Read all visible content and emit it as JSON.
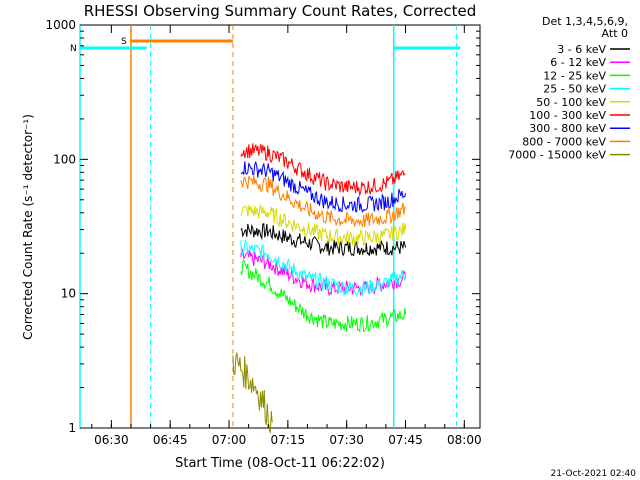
{
  "chart_data": {
    "type": "line",
    "title": "RHESSI Observing Summary Count Rates, Corrected",
    "xlabel": "Start Time (08-Oct-11 06:22:02)",
    "ylabel": "Corrected Count Rate (s⁻¹ detector⁻¹)",
    "yscale": "log",
    "ylim": [
      1,
      1000
    ],
    "xlim": [
      "06:22",
      "08:04"
    ],
    "x_ticks": [
      "06:30",
      "06:45",
      "07:00",
      "07:15",
      "07:30",
      "07:45",
      "08:00"
    ],
    "y_ticks": [
      "1",
      "10",
      "100",
      "1000"
    ],
    "legend_header": [
      "Det 1,3,4,5,6,9,",
      "Att 0"
    ],
    "legend_position": "right",
    "timestamp": "21-Oct-2021 02:40",
    "flags": [
      {
        "label": "S",
        "color": "#ff7f00",
        "start": "06:35",
        "end": "07:01"
      },
      {
        "label": "N",
        "color": "#00ffff",
        "start": "06:22",
        "end": "06:39"
      },
      {
        "label": "",
        "color": "#00ffff",
        "start": "07:42",
        "end": "07:59"
      }
    ],
    "vertical_markers": [
      {
        "time": "06:22",
        "color": "#00ffff",
        "style": "solid"
      },
      {
        "time": "06:35",
        "color": "#ff7f00",
        "style": "solid"
      },
      {
        "time": "06:40",
        "color": "#00ffff",
        "style": "dashed"
      },
      {
        "time": "07:01",
        "color": "#ff7f00",
        "style": "dashed"
      },
      {
        "time": "07:42",
        "color": "#00ffff",
        "style": "solid"
      },
      {
        "time": "07:58",
        "color": "#00ffff",
        "style": "dashed"
      }
    ],
    "series": [
      {
        "name": "3 - 6 keV",
        "color": "#000000",
        "x": [
          "07:03",
          "07:10",
          "07:15",
          "07:20",
          "07:25",
          "07:30",
          "07:35",
          "07:40",
          "07:45"
        ],
        "y": [
          30,
          29,
          26,
          24,
          22,
          22,
          22,
          22,
          22
        ]
      },
      {
        "name": "6 - 12 keV",
        "color": "#ff00ff",
        "x": [
          "07:03",
          "07:10",
          "07:15",
          "07:20",
          "07:25",
          "07:30",
          "07:35",
          "07:40",
          "07:45"
        ],
        "y": [
          19,
          17,
          14,
          12,
          11,
          11,
          11,
          12,
          13
        ]
      },
      {
        "name": "12 - 25 keV",
        "color": "#00ff00",
        "x": [
          "07:03",
          "07:10",
          "07:15",
          "07:20",
          "07:25",
          "07:30",
          "07:35",
          "07:40",
          "07:45"
        ],
        "y": [
          16,
          12,
          9,
          7,
          6,
          6,
          6,
          6.5,
          7
        ]
      },
      {
        "name": "25 - 50 keV",
        "color": "#00ffff",
        "x": [
          "07:03",
          "07:10",
          "07:15",
          "07:20",
          "07:25",
          "07:30",
          "07:35",
          "07:40",
          "07:45"
        ],
        "y": [
          22,
          20,
          16,
          13,
          12,
          11,
          11,
          12,
          14
        ]
      },
      {
        "name": "50 - 100 keV",
        "color": "#d9d900",
        "x": [
          "07:03",
          "07:10",
          "07:15",
          "07:20",
          "07:25",
          "07:30",
          "07:35",
          "07:40",
          "07:45"
        ],
        "y": [
          42,
          40,
          34,
          30,
          27,
          26,
          26,
          27,
          30
        ]
      },
      {
        "name": "100 - 300 keV",
        "color": "#ff0000",
        "x": [
          "07:03",
          "07:10",
          "07:15",
          "07:20",
          "07:25",
          "07:30",
          "07:35",
          "07:40",
          "07:45"
        ],
        "y": [
          118,
          112,
          95,
          78,
          66,
          62,
          62,
          66,
          78
        ]
      },
      {
        "name": "300 - 800 keV",
        "color": "#0000ff",
        "x": [
          "07:03",
          "07:10",
          "07:15",
          "07:20",
          "07:25",
          "07:30",
          "07:35",
          "07:40",
          "07:45"
        ],
        "y": [
          88,
          82,
          68,
          56,
          48,
          46,
          46,
          48,
          56
        ]
      },
      {
        "name": "800 - 7000 keV",
        "color": "#ff7f00",
        "x": [
          "07:03",
          "07:10",
          "07:15",
          "07:20",
          "07:25",
          "07:30",
          "07:35",
          "07:40",
          "07:45"
        ],
        "y": [
          70,
          65,
          52,
          42,
          37,
          35,
          35,
          37,
          43
        ]
      },
      {
        "name": "7000 - 15000 keV",
        "color": "#8b8b00",
        "x": [
          "07:01",
          "07:03",
          "07:05",
          "07:07",
          "07:09",
          "07:11"
        ],
        "y": [
          3.2,
          2.8,
          2.4,
          2.0,
          1.5,
          1.1
        ]
      }
    ]
  }
}
